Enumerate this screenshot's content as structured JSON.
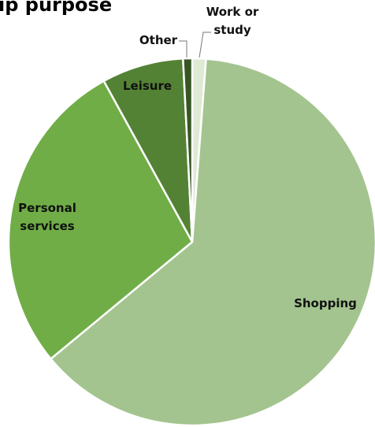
{
  "chart_data": {
    "type": "pie",
    "title": "ip purpose",
    "categories": [
      "Work or study",
      "Shopping",
      "Personal services",
      "Leisure",
      "Other"
    ],
    "values": [
      1.2,
      62.8,
      28,
      7.2,
      0.8
    ],
    "colors": [
      "#dfead5",
      "#a3c48f",
      "#70ad47",
      "#548235",
      "#375623"
    ]
  }
}
